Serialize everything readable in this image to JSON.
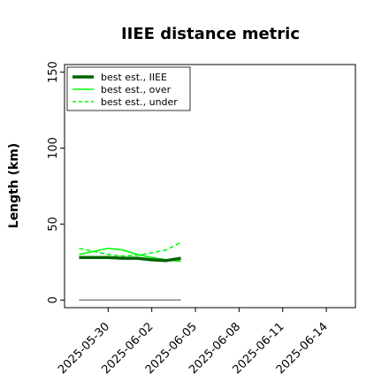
{
  "chart_data": {
    "type": "line",
    "title": "IIEE distance metric",
    "xlabel": "",
    "ylabel": "Length (km)",
    "xlim": [
      "2025-05-27",
      "2025-06-16"
    ],
    "ylim": [
      -5,
      155
    ],
    "yticks": [
      0,
      50,
      100,
      150
    ],
    "xticks": [
      "2025-05-30",
      "2025-06-02",
      "2025-06-05",
      "2025-06-08",
      "2025-06-11",
      "2025-06-14"
    ],
    "grid": false,
    "legend_position": "top-left",
    "x": [
      "2025-05-28",
      "2025-05-29",
      "2025-05-30",
      "2025-05-31",
      "2025-06-01",
      "2025-06-02",
      "2025-06-03",
      "2025-06-04"
    ],
    "series": [
      {
        "name": "best est., IIEE",
        "style": "solid-thick",
        "color": "#006400",
        "values": [
          28,
          28,
          28,
          27.5,
          27.5,
          26.5,
          26,
          27.5
        ]
      },
      {
        "name": "best est., over",
        "style": "solid",
        "color": "#00ff00",
        "values": [
          30,
          32,
          34,
          33,
          30,
          28,
          26.5,
          25.5
        ]
      },
      {
        "name": "best est., under",
        "style": "dashed",
        "color": "#00ff00",
        "values": [
          34,
          32,
          30,
          29,
          29.5,
          31,
          33,
          38
        ]
      }
    ],
    "reference_line": {
      "color": "#808080",
      "value": 0,
      "x_start": "2025-05-28",
      "x_end": "2025-06-04"
    }
  }
}
